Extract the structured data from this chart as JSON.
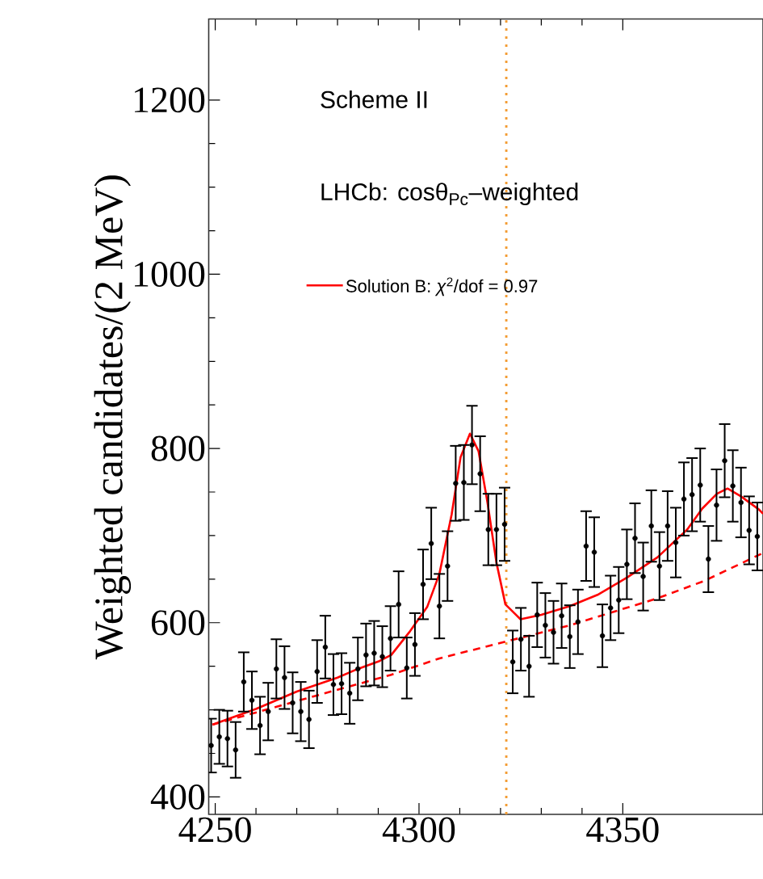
{
  "chart_data": {
    "type": "scatter",
    "ylabel": "Weighted candidates/(2 MeV)",
    "annotations": [
      "Scheme II",
      "LHCb: cosθ$_{Pc}$–weighted"
    ],
    "xlim": [
      4248.4,
      4384.4
    ],
    "ylim": [
      380,
      1293
    ],
    "xticks": [
      4250,
      4300,
      4350
    ],
    "yticks": [
      400,
      600,
      800,
      1000,
      1200
    ],
    "legend": "top left",
    "ref_lines": [
      {
        "axis": "x",
        "value": 4321.4,
        "color": "#f39c33",
        "line_style": "dotted"
      }
    ],
    "series": [
      {
        "color": "#000000",
        "x": [
          4249,
          4251,
          4253,
          4255,
          4257,
          4259,
          4261,
          4263,
          4265,
          4267,
          4269,
          4271,
          4273,
          4275,
          4277,
          4279,
          4281,
          4283,
          4285,
          4287,
          4289,
          4291,
          4293,
          4295,
          4297,
          4299,
          4301,
          4303,
          4305,
          4307,
          4309,
          4311,
          4313,
          4315,
          4317,
          4319,
          4321,
          4323,
          4325,
          4327,
          4329,
          4331,
          4333,
          4335,
          4337,
          4339,
          4341,
          4343,
          4345,
          4347,
          4349,
          4351,
          4353,
          4355,
          4357,
          4359,
          4361,
          4363,
          4365,
          4367,
          4369,
          4371,
          4373,
          4375,
          4377,
          4379,
          4381,
          4383
        ],
        "values": [
          459,
          469,
          467,
          454,
          532,
          511,
          482,
          498,
          547,
          537,
          508,
          498,
          489,
          544,
          572,
          529,
          530,
          519,
          547,
          563,
          565,
          561,
          582,
          621,
          548,
          575,
          644,
          691,
          619,
          665,
          760,
          761,
          804,
          771,
          707,
          707,
          713,
          555,
          581,
          550,
          609,
          597,
          589,
          608,
          584,
          601,
          688,
          681,
          585,
          617,
          626,
          667,
          697,
          653,
          711,
          665,
          711,
          692,
          742,
          747,
          758,
          673,
          735,
          786,
          757,
          738,
          706,
          699
        ],
        "errors": [
          31,
          31,
          32,
          32,
          34,
          33,
          33,
          33,
          34,
          36,
          35,
          34,
          33,
          36,
          36,
          35,
          35,
          35,
          36,
          36,
          37,
          35,
          37,
          38,
          35,
          36,
          40,
          41,
          37,
          40,
          43,
          43,
          45,
          43,
          41,
          41,
          42,
          36,
          36,
          35,
          37,
          37,
          36,
          37,
          36,
          37,
          40,
          40,
          36,
          37,
          38,
          40,
          40,
          39,
          41,
          39,
          40,
          40,
          42,
          42,
          42,
          38,
          41,
          42,
          41,
          40,
          39,
          39
        ]
      },
      {
        "type": "line",
        "name": "Solution B: *χ*$^{2}$/dof = 0.97",
        "color": "#ff0000",
        "line_style": "solid",
        "x": [
          4249.3,
          4260,
          4270,
          4280,
          4285,
          4290.3,
          4293.2,
          4297.6,
          4302,
          4305,
          4308,
          4310.2,
          4312.5,
          4314.6,
          4316.8,
          4319,
          4321.2,
          4324.9,
          4330,
          4337,
          4343.8,
          4351.1,
          4358.5,
          4365.8,
          4369.5,
          4373.1,
          4375.7,
          4379,
          4383.4,
          4384.4
        ],
        "values": [
          483,
          501,
          521,
          537,
          547,
          556,
          563,
          589,
          618,
          656,
          724,
          790,
          817,
          797,
          738,
          669,
          621,
          604,
          609,
          619,
          632,
          652,
          675,
          707,
          731,
          748,
          754,
          745,
          730,
          725
        ]
      },
      {
        "type": "line",
        "color": "#ff0000",
        "line_style": "dashed",
        "x": [
          4249.3,
          4270,
          4293,
          4305,
          4321,
          4337,
          4358.5,
          4370,
          4384.4
        ],
        "values": [
          483,
          510,
          540,
          559,
          578,
          597,
          628,
          648,
          680
        ]
      }
    ]
  }
}
